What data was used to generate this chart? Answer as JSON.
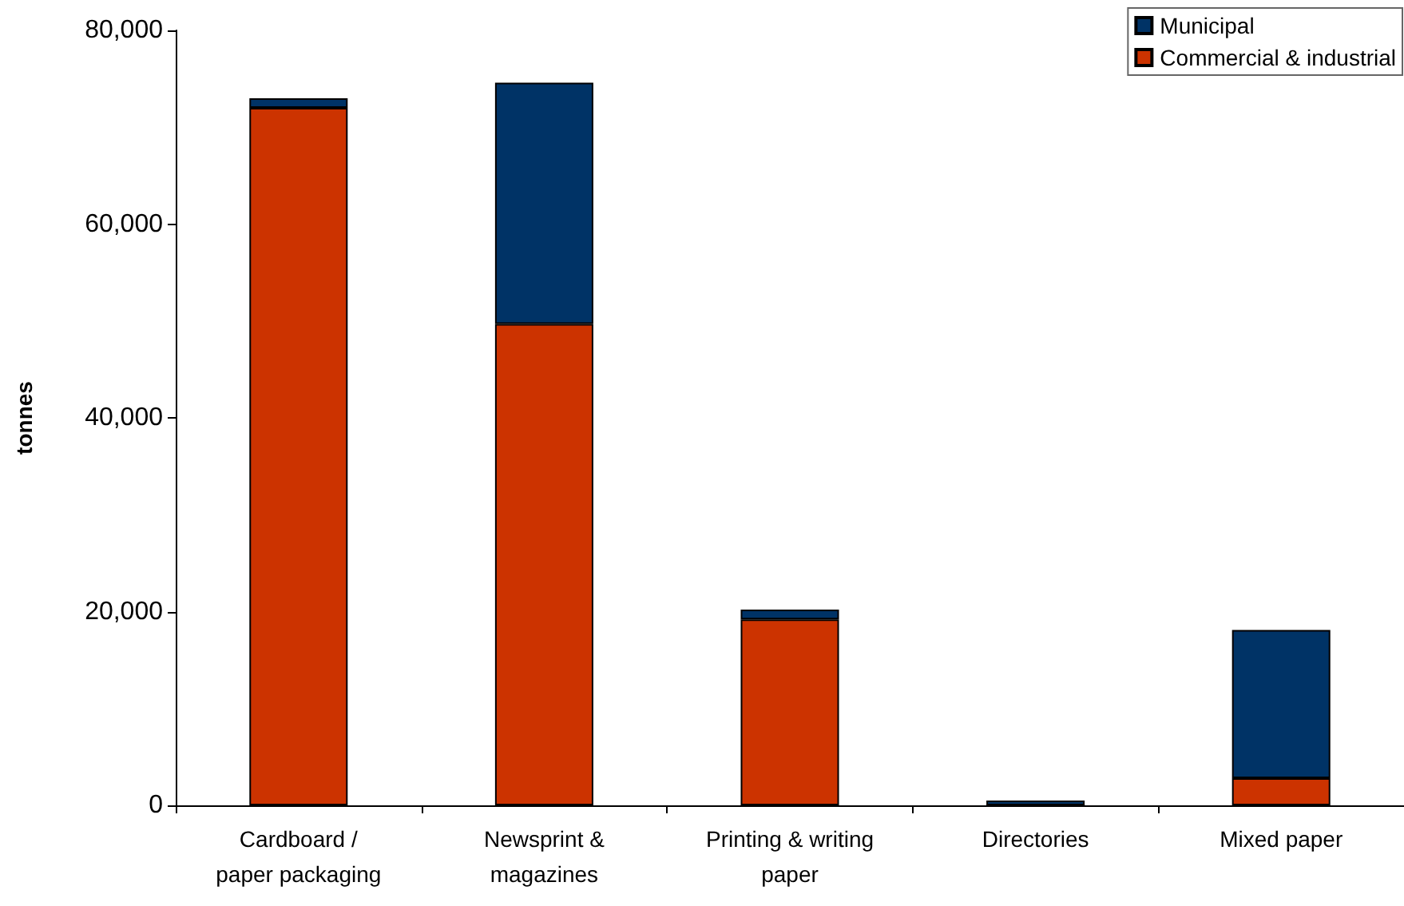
{
  "chart_data": {
    "type": "bar",
    "stacked": true,
    "ylabel": "tonnes",
    "categories": [
      "Cardboard /\npaper packaging",
      "Newsprint &\nmagazines",
      "Printing & writing\npaper",
      "Directories",
      "Mixed paper"
    ],
    "series": [
      {
        "name": "Commercial & industrial",
        "color": "#cc3300",
        "values": [
          72000,
          49700,
          19200,
          0,
          2800
        ]
      },
      {
        "name": "Municipal",
        "color": "#003366",
        "values": [
          1000,
          24900,
          1000,
          500,
          15300
        ]
      }
    ],
    "ylim": [
      0,
      80000
    ],
    "yticks": [
      {
        "value": 0,
        "label": "0"
      },
      {
        "value": 20000,
        "label": "20,000"
      },
      {
        "value": 40000,
        "label": "40,000"
      },
      {
        "value": 60000,
        "label": "60,000"
      },
      {
        "value": 80000,
        "label": "80,000"
      }
    ],
    "grid": false,
    "legend": "top right"
  }
}
